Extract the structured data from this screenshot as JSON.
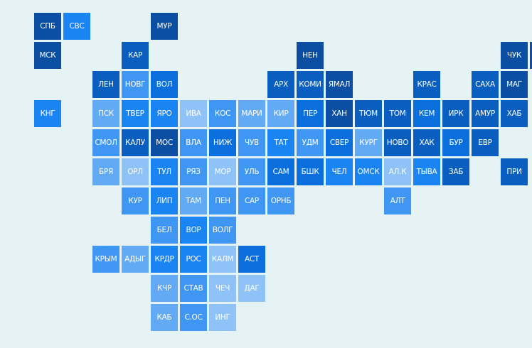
{
  "palette": {
    "d1": "#0b4ea2",
    "d2": "#0a5ec0",
    "d3": "#0a6fdc",
    "m": "#1a84f2",
    "l1": "#3f97f3",
    "l2": "#63aaf4",
    "l3": "#8fc2f7"
  },
  "tiles": [
    {
      "label": "СПБ",
      "shade": "d1"
    },
    {
      "label": "СВС",
      "shade": "m"
    },
    {
      "label": "МУР",
      "shade": "d1"
    },
    {
      "label": "МСК",
      "shade": "d1"
    },
    {
      "label": "КАР",
      "shade": "d2"
    },
    {
      "label": "НЕН",
      "shade": "d1"
    },
    {
      "label": "ЧУК",
      "shade": "d1"
    },
    {
      "label": "",
      "shade": "d1"
    },
    {
      "label": "ЛЕН",
      "shade": "d2"
    },
    {
      "label": "НОВГ",
      "shade": "l1"
    },
    {
      "label": "ВОЛ",
      "shade": "d3"
    },
    {
      "label": "АРХ",
      "shade": "d2"
    },
    {
      "label": "КОМИ",
      "shade": "d2"
    },
    {
      "label": "ЯМАЛ",
      "shade": "d1"
    },
    {
      "label": "КРАС",
      "shade": "d2"
    },
    {
      "label": "САХА",
      "shade": "d2"
    },
    {
      "label": "МАГ",
      "shade": "d1"
    },
    {
      "label": "КНГ",
      "shade": "m"
    },
    {
      "label": "ПСК",
      "shade": "l2"
    },
    {
      "label": "ТВЕР",
      "shade": "m"
    },
    {
      "label": "ЯРО",
      "shade": "m"
    },
    {
      "label": "ИВА",
      "shade": "l3"
    },
    {
      "label": "КОС",
      "shade": "l1"
    },
    {
      "label": "МАРИ",
      "shade": "l2"
    },
    {
      "label": "КИР",
      "shade": "l2"
    },
    {
      "label": "ПЕР",
      "shade": "d3"
    },
    {
      "label": "ХАН",
      "shade": "d1"
    },
    {
      "label": "ТЮМ",
      "shade": "d2"
    },
    {
      "label": "ТОМ",
      "shade": "d2"
    },
    {
      "label": "КЕМ",
      "shade": "d3"
    },
    {
      "label": "ИРК",
      "shade": "d2"
    },
    {
      "label": "АМУР",
      "shade": "d2"
    },
    {
      "label": "ХАБ",
      "shade": "d2"
    },
    {
      "label": "СМОЛ",
      "shade": "l1"
    },
    {
      "label": "КАЛУ",
      "shade": "d2"
    },
    {
      "label": "МОС",
      "shade": "d1"
    },
    {
      "label": "ВЛА",
      "shade": "l1"
    },
    {
      "label": "НИЖ",
      "shade": "d3"
    },
    {
      "label": "ЧУВ",
      "shade": "l1"
    },
    {
      "label": "ТАТ",
      "shade": "m"
    },
    {
      "label": "УДМ",
      "shade": "l1"
    },
    {
      "label": "СВЕР",
      "shade": "d3"
    },
    {
      "label": "КУРГ",
      "shade": "l2"
    },
    {
      "label": "НОВО",
      "shade": "d2"
    },
    {
      "label": "ХАК",
      "shade": "d2"
    },
    {
      "label": "БУР",
      "shade": "d3"
    },
    {
      "label": "ЕВР",
      "shade": "d2"
    },
    {
      "label": "БРЯ",
      "shade": "l2"
    },
    {
      "label": "ОРЛ",
      "shade": "l3"
    },
    {
      "label": "ТУЛ",
      "shade": "m"
    },
    {
      "label": "РЯЗ",
      "shade": "l1"
    },
    {
      "label": "МОР",
      "shade": "l3"
    },
    {
      "label": "УЛЬ",
      "shade": "l1"
    },
    {
      "label": "САМ",
      "shade": "d3"
    },
    {
      "label": "БШК",
      "shade": "d3"
    },
    {
      "label": "ЧЕЛ",
      "shade": "m"
    },
    {
      "label": "ОМСК",
      "shade": "m"
    },
    {
      "label": "АЛ.К",
      "shade": "l3"
    },
    {
      "label": "ТЫВА",
      "shade": "m"
    },
    {
      "label": "ЗАБ",
      "shade": "d2"
    },
    {
      "label": "ПРИ",
      "shade": "d2"
    },
    {
      "label": "КУР",
      "shade": "l1"
    },
    {
      "label": "ЛИП",
      "shade": "m"
    },
    {
      "label": "ТАМ",
      "shade": "l2"
    },
    {
      "label": "ПЕН",
      "shade": "l1"
    },
    {
      "label": "САР",
      "shade": "l1"
    },
    {
      "label": "ОРНБ",
      "shade": "l1"
    },
    {
      "label": "АЛТ",
      "shade": "l1"
    },
    {
      "label": "БЕЛ",
      "shade": "l1"
    },
    {
      "label": "ВОР",
      "shade": "m"
    },
    {
      "label": "ВОЛГ",
      "shade": "l1"
    },
    {
      "label": "КРЫМ",
      "shade": "l1"
    },
    {
      "label": "АДЫГ",
      "shade": "l2"
    },
    {
      "label": "КРДР",
      "shade": "m"
    },
    {
      "label": "РОС",
      "shade": "m"
    },
    {
      "label": "КАЛМ",
      "shade": "l3"
    },
    {
      "label": "АСТ",
      "shade": "d3"
    },
    {
      "label": "КЧР",
      "shade": "l2"
    },
    {
      "label": "СТАВ",
      "shade": "l1"
    },
    {
      "label": "ЧЕЧ",
      "shade": "l3"
    },
    {
      "label": "ДАГ",
      "shade": "l3"
    },
    {
      "label": "КАБ",
      "shade": "l2"
    },
    {
      "label": "С.ОС",
      "shade": "l1"
    },
    {
      "label": "ИНГ",
      "shade": "l3"
    }
  ]
}
